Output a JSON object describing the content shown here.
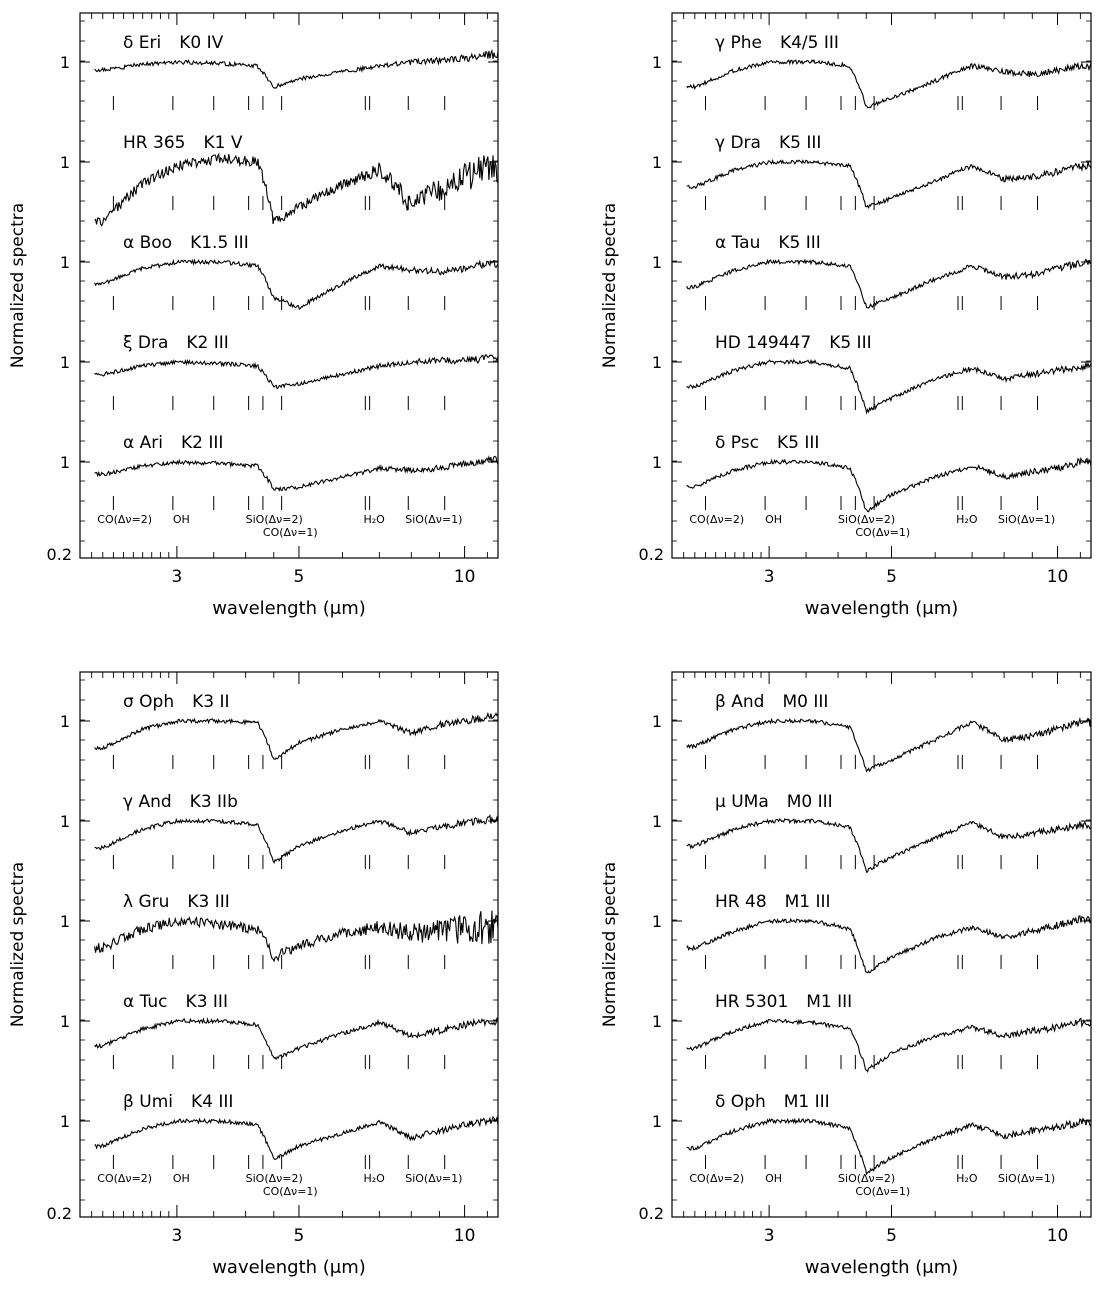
{
  "figure": {
    "panels": [
      {
        "ylabel": "Normalized spectra",
        "xlabel": "wavelength (μm)",
        "x_ticks": [
          "3",
          "5",
          "10"
        ],
        "y_bottom_label": "0.2",
        "stars": [
          {
            "name": "δ Eri",
            "spectral_type": "K0 IV"
          },
          {
            "name": "HR 365",
            "spectral_type": "K1 V"
          },
          {
            "name": "α Boo",
            "spectral_type": "K1.5 III"
          },
          {
            "name": "ξ Dra",
            "spectral_type": "K2 III"
          },
          {
            "name": "α Ari",
            "spectral_type": "K2 III"
          }
        ]
      },
      {
        "ylabel": "Normalized spectra",
        "xlabel": "wavelength (μm)",
        "x_ticks": [
          "3",
          "5",
          "10"
        ],
        "y_bottom_label": "0.2",
        "stars": [
          {
            "name": "γ Phe",
            "spectral_type": "K4/5 III"
          },
          {
            "name": "γ Dra",
            "spectral_type": "K5 III"
          },
          {
            "name": "α Tau",
            "spectral_type": "K5 III"
          },
          {
            "name": "HD 149447",
            "spectral_type": "K5 III"
          },
          {
            "name": "δ Psc",
            "spectral_type": "K5 III"
          }
        ]
      },
      {
        "ylabel": "Normalized spectra",
        "xlabel": "wavelength (μm)",
        "x_ticks": [
          "3",
          "5",
          "10"
        ],
        "y_bottom_label": "0.2",
        "stars": [
          {
            "name": "σ Oph",
            "spectral_type": "K3 II"
          },
          {
            "name": "γ And",
            "spectral_type": "K3 IIb"
          },
          {
            "name": "λ Gru",
            "spectral_type": "K3 III"
          },
          {
            "name": "α Tuc",
            "spectral_type": "K3 III"
          },
          {
            "name": "β Umi",
            "spectral_type": "K4 III"
          }
        ]
      },
      {
        "ylabel": "Normalized spectra",
        "xlabel": "wavelength (μm)",
        "x_ticks": [
          "3",
          "5",
          "10"
        ],
        "y_bottom_label": "0.2",
        "stars": [
          {
            "name": "β And",
            "spectral_type": "M0 III"
          },
          {
            "name": "μ UMa",
            "spectral_type": "M0 III"
          },
          {
            "name": "HR 48",
            "spectral_type": "M1 III"
          },
          {
            "name": "HR 5301",
            "spectral_type": "M1 III"
          },
          {
            "name": "δ Oph",
            "spectral_type": "M1 III"
          }
        ]
      }
    ],
    "band_labels": {
      "co2": "CO(Δν=2)",
      "oh": "OH",
      "sio2": "SiO(Δν=2)",
      "co1": "CO(Δν=1)",
      "h2o": "H₂O",
      "sio1": "SiO(Δν=1)"
    },
    "line_positions_um": [
      2.3,
      2.95,
      3.5,
      4.05,
      4.3,
      4.65,
      6.6,
      6.72,
      7.9,
      9.2
    ]
  },
  "chart_data": [
    {
      "type": "line",
      "xlabel": "wavelength (μm)",
      "ylabel": "Normalized spectra",
      "x_scale": "log",
      "xlim": [
        2.0,
        11.5
      ],
      "xticks": [
        3,
        5,
        10
      ],
      "y_scale": "log",
      "series": [
        {
          "name": "δ Eri K0 IV",
          "x": [
            2.2,
            2.6,
            3.0,
            3.6,
            4.2,
            4.5,
            5,
            6,
            7,
            8,
            9,
            10,
            11
          ],
          "y": [
            0.9,
            0.97,
            1.0,
            0.98,
            0.95,
            0.72,
            0.8,
            0.88,
            0.95,
            1.0,
            1.02,
            1.05,
            1.1
          ]
        },
        {
          "name": "HR 365 K1 V",
          "x": [
            2.2,
            2.6,
            3.0,
            3.6,
            4.2,
            4.5,
            5,
            6,
            7,
            8,
            9,
            10,
            11
          ],
          "y": [
            0.45,
            0.75,
            0.95,
            1.05,
            1.0,
            0.45,
            0.55,
            0.75,
            0.9,
            0.55,
            0.7,
            0.8,
            0.9
          ]
        },
        {
          "name": "α Boo K1.5 III",
          "x": [
            2.2,
            2.6,
            3.0,
            3.6,
            4.2,
            4.5,
            5,
            6,
            7,
            8,
            9,
            10,
            11
          ],
          "y": [
            0.75,
            0.92,
            1.0,
            1.0,
            0.95,
            0.62,
            0.55,
            0.75,
            0.95,
            0.9,
            0.88,
            0.92,
            0.98
          ]
        },
        {
          "name": "ξ Dra K2 III",
          "x": [
            2.2,
            2.6,
            3.0,
            3.6,
            4.2,
            4.5,
            5,
            6,
            7,
            8,
            9,
            10,
            11
          ],
          "y": [
            0.85,
            0.95,
            1.0,
            0.98,
            0.95,
            0.72,
            0.75,
            0.85,
            0.95,
            1.0,
            1.02,
            1.02,
            1.05
          ]
        },
        {
          "name": "α Ari K2 III",
          "x": [
            2.2,
            2.6,
            3.0,
            3.6,
            4.2,
            4.5,
            5,
            6,
            7,
            8,
            9,
            10,
            11
          ],
          "y": [
            0.85,
            0.95,
            1.0,
            0.98,
            0.95,
            0.7,
            0.72,
            0.82,
            0.92,
            0.9,
            0.92,
            0.98,
            1.02
          ]
        }
      ]
    },
    {
      "type": "line",
      "xlabel": "wavelength (μm)",
      "ylabel": "Normalized spectra",
      "x_scale": "log",
      "xlim": [
        2.0,
        11.5
      ],
      "xticks": [
        3,
        5,
        10
      ],
      "y_scale": "log",
      "series": [
        {
          "name": "γ Phe K4/5 III",
          "x": [
            2.2,
            2.6,
            3.0,
            3.6,
            4.2,
            4.5,
            5,
            6,
            7,
            8,
            9,
            10,
            11
          ],
          "y": [
            0.72,
            0.9,
            1.0,
            1.0,
            0.95,
            0.55,
            0.62,
            0.78,
            0.95,
            0.88,
            0.85,
            0.9,
            0.95
          ]
        },
        {
          "name": "γ Dra K5 III",
          "x": [
            2.2,
            2.6,
            3.0,
            3.6,
            4.2,
            4.5,
            5,
            6,
            7,
            8,
            9,
            10,
            11
          ],
          "y": [
            0.72,
            0.9,
            1.0,
            1.0,
            0.95,
            0.55,
            0.62,
            0.78,
            0.95,
            0.8,
            0.82,
            0.88,
            0.95
          ]
        },
        {
          "name": "α Tau K5 III",
          "x": [
            2.2,
            2.6,
            3.0,
            3.6,
            4.2,
            4.5,
            5,
            6,
            7,
            8,
            9,
            10,
            11
          ],
          "y": [
            0.72,
            0.9,
            1.0,
            1.0,
            0.95,
            0.55,
            0.62,
            0.8,
            0.95,
            0.82,
            0.85,
            0.92,
            0.98
          ]
        },
        {
          "name": "HD 149447 K5 III",
          "x": [
            2.2,
            2.6,
            3.0,
            3.6,
            4.2,
            4.5,
            5,
            6,
            7,
            8,
            9,
            10,
            11
          ],
          "y": [
            0.72,
            0.9,
            1.0,
            1.0,
            0.92,
            0.52,
            0.62,
            0.8,
            0.92,
            0.8,
            0.85,
            0.9,
            0.95
          ]
        },
        {
          "name": "δ Psc K5 III",
          "x": [
            2.2,
            2.6,
            3.0,
            3.6,
            4.2,
            4.5,
            5,
            6,
            7,
            8,
            9,
            10,
            11
          ],
          "y": [
            0.72,
            0.9,
            1.0,
            1.0,
            0.92,
            0.52,
            0.65,
            0.82,
            0.95,
            0.82,
            0.88,
            0.92,
            1.0
          ]
        }
      ]
    },
    {
      "type": "line",
      "xlabel": "wavelength (μm)",
      "ylabel": "Normalized spectra",
      "x_scale": "log",
      "xlim": [
        2.0,
        11.5
      ],
      "xticks": [
        3,
        5,
        10
      ],
      "y_scale": "log",
      "series": [
        {
          "name": "σ Oph K3 II",
          "x": [
            2.2,
            2.6,
            3.0,
            3.6,
            4.2,
            4.5,
            5,
            6,
            7,
            8,
            9,
            10,
            11
          ],
          "y": [
            0.7,
            0.9,
            1.0,
            1.0,
            0.98,
            0.6,
            0.75,
            0.9,
            1.0,
            0.85,
            0.95,
            1.0,
            1.05
          ]
        },
        {
          "name": "γ And K3 IIb",
          "x": [
            2.2,
            2.6,
            3.0,
            3.6,
            4.2,
            4.5,
            5,
            6,
            7,
            8,
            9,
            10,
            11
          ],
          "y": [
            0.7,
            0.9,
            1.0,
            1.0,
            0.95,
            0.58,
            0.72,
            0.88,
            1.0,
            0.85,
            0.92,
            0.98,
            1.02
          ]
        },
        {
          "name": "λ Gru K3 III",
          "x": [
            2.2,
            2.6,
            3.0,
            3.6,
            4.2,
            4.5,
            5,
            6,
            7,
            8,
            9,
            10,
            11
          ],
          "y": [
            0.7,
            0.9,
            1.0,
            0.95,
            0.9,
            0.62,
            0.72,
            0.85,
            0.92,
            0.85,
            0.88,
            0.9,
            0.92
          ]
        },
        {
          "name": "α Tuc K3 III",
          "x": [
            2.2,
            2.6,
            3.0,
            3.6,
            4.2,
            4.5,
            5,
            6,
            7,
            8,
            9,
            10,
            11
          ],
          "y": [
            0.72,
            0.9,
            1.0,
            1.0,
            0.95,
            0.6,
            0.7,
            0.85,
            0.98,
            0.82,
            0.88,
            0.95,
            1.0
          ]
        },
        {
          "name": "β Umi K4 III",
          "x": [
            2.2,
            2.6,
            3.0,
            3.6,
            4.2,
            4.5,
            5,
            6,
            7,
            8,
            9,
            10,
            11
          ],
          "y": [
            0.72,
            0.9,
            1.0,
            1.0,
            0.95,
            0.6,
            0.72,
            0.85,
            0.98,
            0.8,
            0.88,
            0.95,
            1.0
          ]
        }
      ]
    },
    {
      "type": "line",
      "xlabel": "wavelength (μm)",
      "ylabel": "Normalized spectra",
      "x_scale": "log",
      "xlim": [
        2.0,
        11.5
      ],
      "xticks": [
        3,
        5,
        10
      ],
      "y_scale": "log",
      "series": [
        {
          "name": "β And M0 III",
          "x": [
            2.2,
            2.6,
            3.0,
            3.6,
            4.2,
            4.5,
            5,
            6,
            7,
            8,
            9,
            10,
            11
          ],
          "y": [
            0.72,
            0.9,
            1.0,
            1.0,
            0.92,
            0.52,
            0.6,
            0.78,
            0.98,
            0.78,
            0.82,
            0.9,
            0.98
          ]
        },
        {
          "name": "μ UMa M0 III",
          "x": [
            2.2,
            2.6,
            3.0,
            3.6,
            4.2,
            4.5,
            5,
            6,
            7,
            8,
            9,
            10,
            11
          ],
          "y": [
            0.72,
            0.9,
            1.0,
            1.0,
            0.92,
            0.52,
            0.62,
            0.8,
            0.98,
            0.8,
            0.85,
            0.9,
            0.95
          ]
        },
        {
          "name": "HR 48 M1 III",
          "x": [
            2.2,
            2.6,
            3.0,
            3.6,
            4.2,
            4.5,
            5,
            6,
            7,
            8,
            9,
            10,
            11
          ],
          "y": [
            0.7,
            0.88,
            1.0,
            1.0,
            0.9,
            0.5,
            0.62,
            0.8,
            0.92,
            0.8,
            0.88,
            0.95,
            1.02
          ]
        },
        {
          "name": "HR 5301 M1 III",
          "x": [
            2.2,
            2.6,
            3.0,
            3.6,
            4.2,
            4.5,
            5,
            6,
            7,
            8,
            9,
            10,
            11
          ],
          "y": [
            0.7,
            0.88,
            1.0,
            0.98,
            0.9,
            0.52,
            0.65,
            0.82,
            0.92,
            0.82,
            0.88,
            0.92,
            0.98
          ]
        },
        {
          "name": "δ Oph M1 III",
          "x": [
            2.2,
            2.6,
            3.0,
            3.6,
            4.2,
            4.5,
            5,
            6,
            7,
            8,
            9,
            10,
            11
          ],
          "y": [
            0.7,
            0.88,
            1.0,
            1.0,
            0.9,
            0.5,
            0.62,
            0.8,
            0.95,
            0.82,
            0.88,
            0.92,
            0.98
          ]
        }
      ]
    }
  ]
}
